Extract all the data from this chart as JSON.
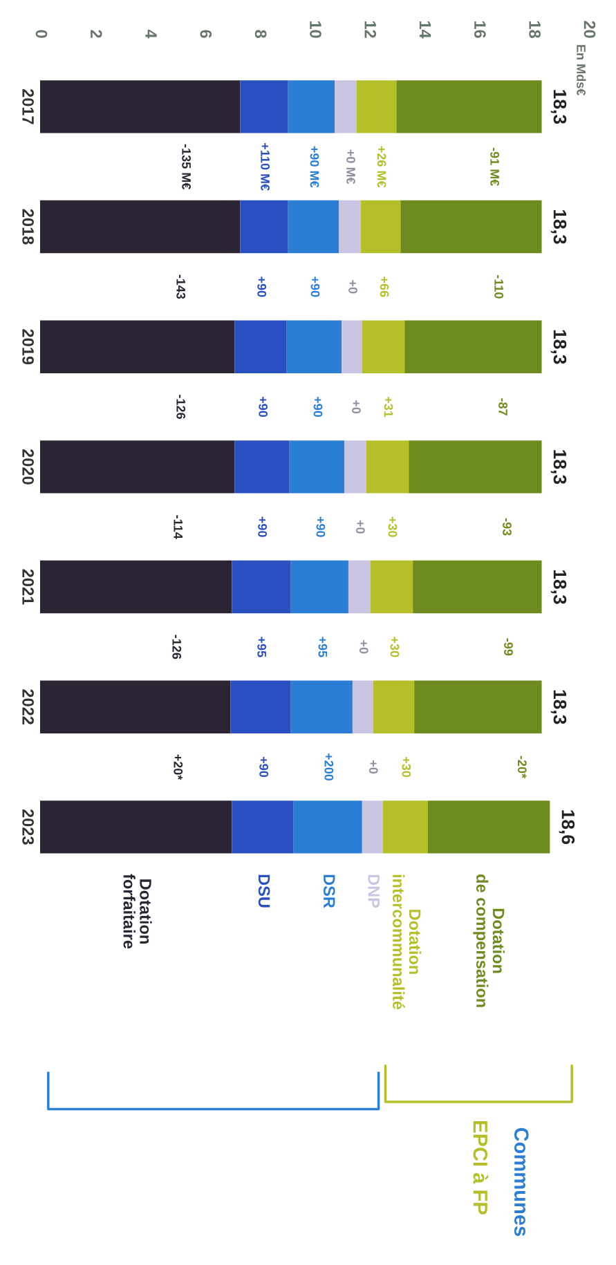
{
  "chart_data": {
    "type": "bar",
    "orientation": "horizontal",
    "stacked": true,
    "categories": [
      "2017",
      "2018",
      "2019",
      "2020",
      "2021",
      "2022",
      "2023"
    ],
    "series": [
      {
        "name": "Dotation\nforfaitaire",
        "color": "#2b2433",
        "values": [
          7.3,
          7.3,
          7.1,
          7.1,
          7.0,
          6.95,
          7.0
        ]
      },
      {
        "name": "DSU",
        "color": "#2a4fc0",
        "values": [
          1.75,
          1.75,
          1.9,
          2.0,
          2.15,
          2.2,
          2.25
        ]
      },
      {
        "name": "DSR",
        "color": "#2a7fd4",
        "values": [
          1.7,
          1.85,
          2.0,
          2.0,
          2.1,
          2.25,
          2.5
        ]
      },
      {
        "name": "DNP",
        "color": "#c9c5e2",
        "values": [
          0.8,
          0.8,
          0.75,
          0.8,
          0.8,
          0.75,
          0.75
        ]
      },
      {
        "name": "Dotation\nintercommunalité",
        "color": "#b4bf2a",
        "values": [
          1.45,
          1.45,
          1.55,
          1.55,
          1.55,
          1.5,
          1.65
        ]
      },
      {
        "name": "Dotation\nde compensation",
        "color": "#6e8b1f",
        "values": [
          5.3,
          5.15,
          5.0,
          4.85,
          4.7,
          4.65,
          4.45
        ]
      }
    ],
    "totals": [
      "18,3",
      "18,3",
      "18,3",
      "18,3",
      "18,3",
      "18,3",
      "18,6"
    ],
    "xlim": [
      0,
      20
    ],
    "xticks": [
      0,
      2,
      4,
      6,
      8,
      10,
      12,
      14,
      16,
      18,
      20
    ],
    "grid": false,
    "legend": false,
    "annotations": [
      "En Mds€",
      "-91 M€",
      "+26 M€",
      "+0 M€",
      "+90 M€",
      "+110 M€",
      "-135 M€",
      "-110",
      "+66",
      "+0",
      "+90",
      "+90",
      "-143",
      "-87",
      "+31",
      "+0",
      "+90",
      "+90",
      "-126",
      "-93",
      "+30",
      "+0",
      "+90",
      "+90",
      "-114",
      "-99",
      "+30",
      "+0",
      "+95",
      "+95",
      "-126",
      "-20*",
      "+30",
      "+0",
      "+200",
      "+90",
      "+20*",
      "EPCI à FP",
      "Communes"
    ]
  }
}
